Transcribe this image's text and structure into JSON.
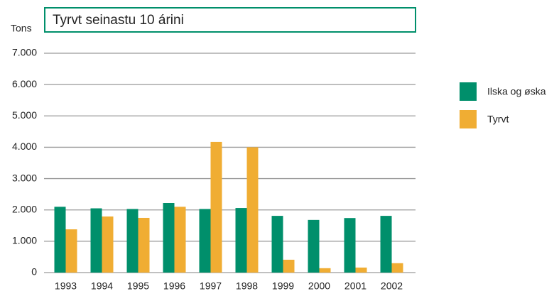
{
  "chart_data": {
    "type": "bar",
    "title": "Tyrvt seinastu 10 árini",
    "y_label": "Tons",
    "categories": [
      "1993",
      "1994",
      "1995",
      "1996",
      "1997",
      "1998",
      "1999",
      "2000",
      "2001",
      "2002"
    ],
    "series": [
      {
        "name": "Ilska og øska",
        "color": "#008f6b",
        "values": [
          2100,
          2050,
          2030,
          2220,
          2030,
          2060,
          1810,
          1680,
          1740,
          1810
        ]
      },
      {
        "name": "Tyrvt",
        "color": "#f0ad33",
        "values": [
          1380,
          1790,
          1745,
          2100,
          4170,
          4000,
          410,
          140,
          160,
          300
        ]
      }
    ],
    "ylim": [
      0,
      7000
    ],
    "yticks": [
      0,
      {
        "value": 1000,
        "label": "1.000"
      },
      {
        "value": 2000,
        "label": "2.000"
      },
      {
        "value": 3000,
        "label": "3.000"
      },
      {
        "value": 4000,
        "label": "4.000"
      },
      {
        "value": 5000,
        "label": "5.000"
      },
      {
        "value": 6000,
        "label": "6.000"
      },
      {
        "value": 7000,
        "label": "7.000"
      }
    ],
    "grid": true,
    "legend": "right"
  }
}
